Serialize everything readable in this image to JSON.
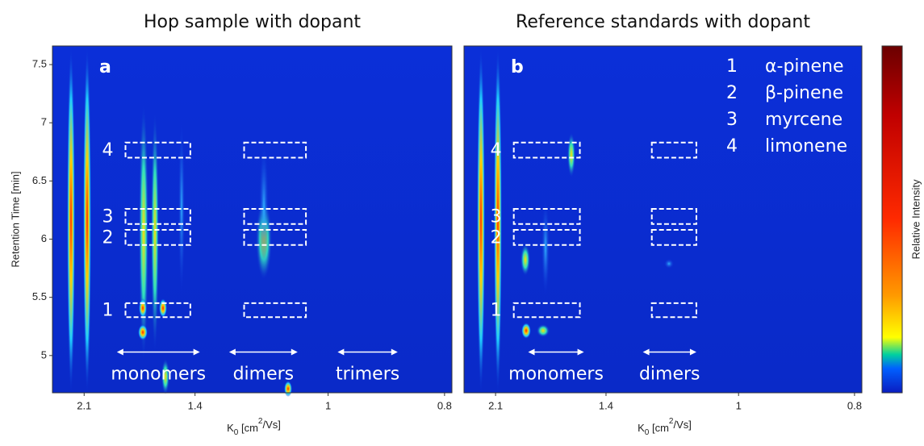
{
  "chart_data": [
    {
      "type": "heatmap",
      "title": "Hop sample with dopant",
      "panel": "a",
      "xlabel": [
        "K",
        "0",
        " [cm",
        "2",
        "/Vs]"
      ],
      "ylabel": "Retention Time [min]",
      "xscale": "reciprocal",
      "xlim": [
        2.45,
        0.79
      ],
      "xticks": [
        2.1,
        1.4,
        1,
        0.8
      ],
      "ylim": [
        4.68,
        7.66
      ],
      "yticks": [
        5,
        5.5,
        6,
        6.5,
        7,
        7.5
      ],
      "boxes": [
        {
          "label": "4",
          "xlim": [
            1.77,
            1.42
          ],
          "ylim": [
            6.7,
            6.83
          ]
        },
        {
          "label": "3",
          "xlim": [
            1.77,
            1.42
          ],
          "ylim": [
            6.13,
            6.26
          ]
        },
        {
          "label": "2",
          "xlim": [
            1.77,
            1.42
          ],
          "ylim": [
            5.95,
            6.08
          ]
        },
        {
          "label": "1",
          "xlim": [
            1.77,
            1.42
          ],
          "ylim": [
            5.33,
            5.45
          ]
        },
        {
          "label": null,
          "xlim": [
            1.22,
            1.05
          ],
          "ylim": [
            6.7,
            6.83
          ]
        },
        {
          "label": null,
          "xlim": [
            1.22,
            1.05
          ],
          "ylim": [
            6.13,
            6.26
          ]
        },
        {
          "label": null,
          "xlim": [
            1.22,
            1.05
          ],
          "ylim": [
            5.95,
            6.08
          ]
        },
        {
          "label": null,
          "xlim": [
            1.22,
            1.05
          ],
          "ylim": [
            5.33,
            5.45
          ]
        }
      ],
      "regions": [
        {
          "label": "monomers",
          "xlim": [
            1.83,
            1.38
          ],
          "y": 5.03
        },
        {
          "label": "dimers",
          "xlim": [
            1.27,
            1.07
          ],
          "y": 5.03
        },
        {
          "label": "trimers",
          "xlim": [
            0.98,
            0.87
          ],
          "y": 5.03
        }
      ]
    },
    {
      "type": "heatmap",
      "title": "Reference standards with dopant",
      "panel": "b",
      "xlabel": [
        "K",
        "0",
        " [cm",
        "2",
        "/Vs]"
      ],
      "xscale": "reciprocal",
      "xlim": [
        2.45,
        0.79
      ],
      "xticks": [
        2.1,
        1.4,
        1,
        0.8
      ],
      "ylim": [
        4.68,
        7.66
      ],
      "boxes": [
        {
          "label": "4",
          "xlim": [
            1.94,
            1.52
          ],
          "ylim": [
            6.7,
            6.83
          ]
        },
        {
          "label": "3",
          "xlim": [
            1.94,
            1.52
          ],
          "ylim": [
            6.13,
            6.26
          ]
        },
        {
          "label": "2",
          "xlim": [
            1.94,
            1.52
          ],
          "ylim": [
            5.95,
            6.08
          ]
        },
        {
          "label": "1",
          "xlim": [
            1.94,
            1.52
          ],
          "ylim": [
            5.33,
            5.45
          ]
        },
        {
          "label": null,
          "xlim": [
            1.23,
            1.1
          ],
          "ylim": [
            6.7,
            6.83
          ]
        },
        {
          "label": null,
          "xlim": [
            1.23,
            1.1
          ],
          "ylim": [
            6.13,
            6.26
          ]
        },
        {
          "label": null,
          "xlim": [
            1.23,
            1.1
          ],
          "ylim": [
            5.95,
            6.08
          ]
        },
        {
          "label": null,
          "xlim": [
            1.23,
            1.1
          ],
          "ylim": [
            5.33,
            5.45
          ]
        }
      ],
      "regions": [
        {
          "label": "monomers",
          "xlim": [
            1.83,
            1.5
          ],
          "y": 5.03
        },
        {
          "label": "dimers",
          "xlim": [
            1.26,
            1.1
          ],
          "y": 5.03
        }
      ],
      "legend": [
        [
          "1",
          "α-pinene"
        ],
        [
          "2",
          "β-pinene"
        ],
        [
          "3",
          "myrcene"
        ],
        [
          "4",
          "limonene"
        ]
      ],
      "colorbar_label": "Relative Intensity"
    }
  ]
}
